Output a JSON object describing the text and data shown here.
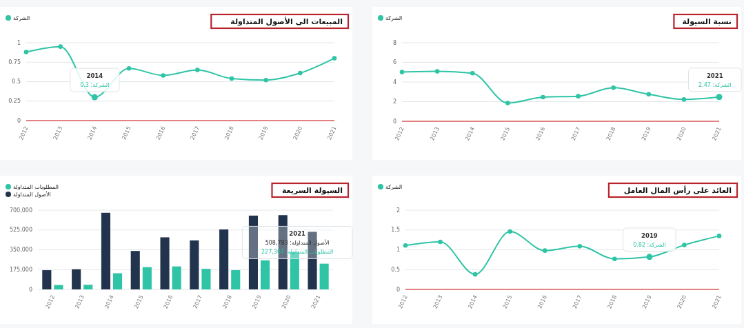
{
  "chart_data": [
    {
      "type": "line",
      "title": "نسبة السيولة",
      "categories": [
        "2012",
        "2013",
        "2014",
        "2015",
        "2016",
        "2017",
        "2018",
        "2019",
        "2020",
        "2021"
      ],
      "series": [
        {
          "name": "الشركة",
          "color": "#2ec4a5",
          "values": [
            5.01,
            5.08,
            4.89,
            1.86,
            2.46,
            2.55,
            3.42,
            2.75,
            2.22,
            2.47
          ]
        }
      ],
      "ylim": [
        0,
        8
      ],
      "yticks": [
        0,
        2,
        4,
        6,
        8
      ],
      "grid": "y",
      "legend": "top left",
      "marker": "circle",
      "annotations": [
        {
          "text": "2021\nالشركة: 2.47",
          "x": "2021",
          "y": 2.47
        }
      ]
    },
    {
      "type": "line",
      "title": "المبيعات الى الأصول المتداولة",
      "categories": [
        "2012",
        "2013",
        "2014",
        "2015",
        "2016",
        "2017",
        "2018",
        "2019",
        "2020",
        "2021"
      ],
      "series": [
        {
          "name": "الشركة",
          "color": "#2ec4a5",
          "values": [
            0.88,
            0.95,
            0.3,
            0.67,
            0.58,
            0.65,
            0.54,
            0.52,
            0.61,
            0.8
          ]
        }
      ],
      "ylim": [
        0,
        1
      ],
      "yticks": [
        0,
        0.25,
        0.5,
        0.75,
        1
      ],
      "grid": "y",
      "legend": "top left",
      "marker": "circle",
      "annotations": [
        {
          "text": "2014\nالشركة: 0.3",
          "x": "2014",
          "y": 0.3
        }
      ]
    },
    {
      "type": "line",
      "title": "العائد على رأس المال العامل",
      "categories": [
        "2012",
        "2013",
        "2014",
        "2015",
        "2016",
        "2017",
        "2018",
        "2019",
        "2020",
        "2021"
      ],
      "series": [
        {
          "name": "الشركة",
          "color": "#2ec4a5",
          "values": [
            1.11,
            1.2,
            0.38,
            1.46,
            0.98,
            1.09,
            0.77,
            0.82,
            1.12,
            1.35
          ]
        }
      ],
      "ylim": [
        0,
        2
      ],
      "yticks": [
        0,
        0.5,
        1,
        1.5,
        2
      ],
      "grid": "y",
      "legend": "top left",
      "marker": "circle",
      "annotations": [
        {
          "text": "2019\nالشركة: 0.82",
          "x": "2019",
          "y": 0.82
        }
      ]
    },
    {
      "type": "bar",
      "title": "السيولة السريعة",
      "categories": [
        "2012",
        "2013",
        "2014",
        "2015",
        "2016",
        "2017",
        "2018",
        "2019",
        "2020",
        "2021"
      ],
      "series": [
        {
          "name": "الأصول المتداولة",
          "color": "#22344d",
          "values": [
            170000,
            178000,
            677000,
            340000,
            460000,
            433000,
            530000,
            652000,
            656000,
            508783
          ]
        },
        {
          "name": "المطلوبات المتداولة",
          "color": "#2ec4a5",
          "values": [
            39000,
            41000,
            143000,
            197000,
            203000,
            182000,
            170000,
            257000,
            330000,
            227367
          ]
        }
      ],
      "ylim": [
        0,
        700000
      ],
      "yticks": [
        0,
        {
          "value": 175000,
          "label": "175,000"
        },
        {
          "value": 350000,
          "label": "350,000"
        },
        {
          "value": 525000,
          "label": "525,000"
        },
        {
          "value": 700000,
          "label": "700,000"
        }
      ],
      "grid": "y",
      "legend": "top left",
      "annotations": [
        {
          "text": "2021\nالأصول المتداولة: 508,783\nالمطلوبات المتداولة: 227,367",
          "x": "2021",
          "y": 508783
        }
      ]
    }
  ]
}
